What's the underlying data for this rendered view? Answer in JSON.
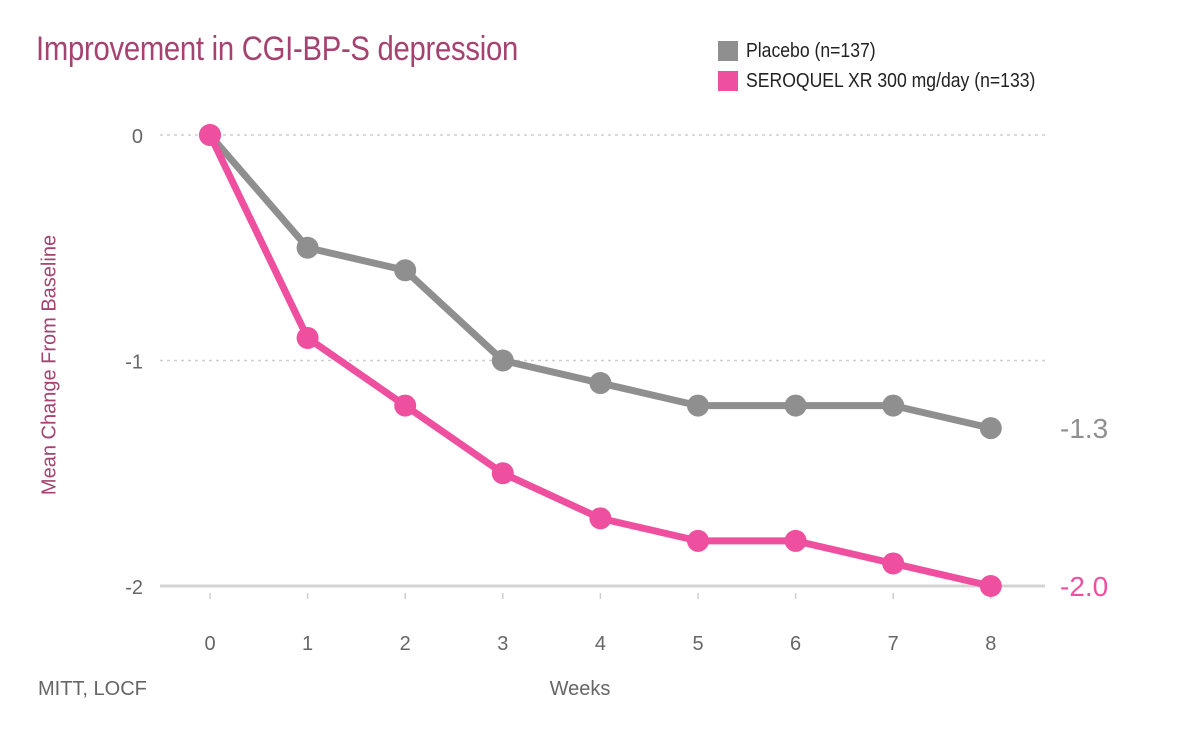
{
  "chart_data": {
    "type": "line",
    "title": "Improvement in CGI-BP-S depression",
    "xlabel": "Weeks",
    "ylabel": "Mean Change From Baseline",
    "note": "MITT, LOCF",
    "x": [
      0,
      1,
      2,
      3,
      4,
      5,
      6,
      7,
      8
    ],
    "x_ticks": [
      "0",
      "1",
      "2",
      "3",
      "4",
      "5",
      "6",
      "7",
      "8"
    ],
    "y_ticks": [
      "0",
      "-1",
      "-2"
    ],
    "ylim": [
      -2,
      0
    ],
    "grid": "horizontal dotted",
    "legend_position": "top-right",
    "series": [
      {
        "name": "Placebo (n=137)",
        "color": "#8f8f90",
        "values": [
          0,
          -0.5,
          -0.6,
          -1.0,
          -1.1,
          -1.2,
          -1.2,
          -1.2,
          -1.3
        ],
        "end_label": "-1.3"
      },
      {
        "name": "SEROQUEL XR 300 mg/day (n=133)",
        "color": "#ee4f9f",
        "values": [
          0,
          -0.9,
          -1.2,
          -1.5,
          -1.7,
          -1.8,
          -1.8,
          -1.9,
          -2.0
        ],
        "end_label": "-2.0"
      }
    ]
  }
}
